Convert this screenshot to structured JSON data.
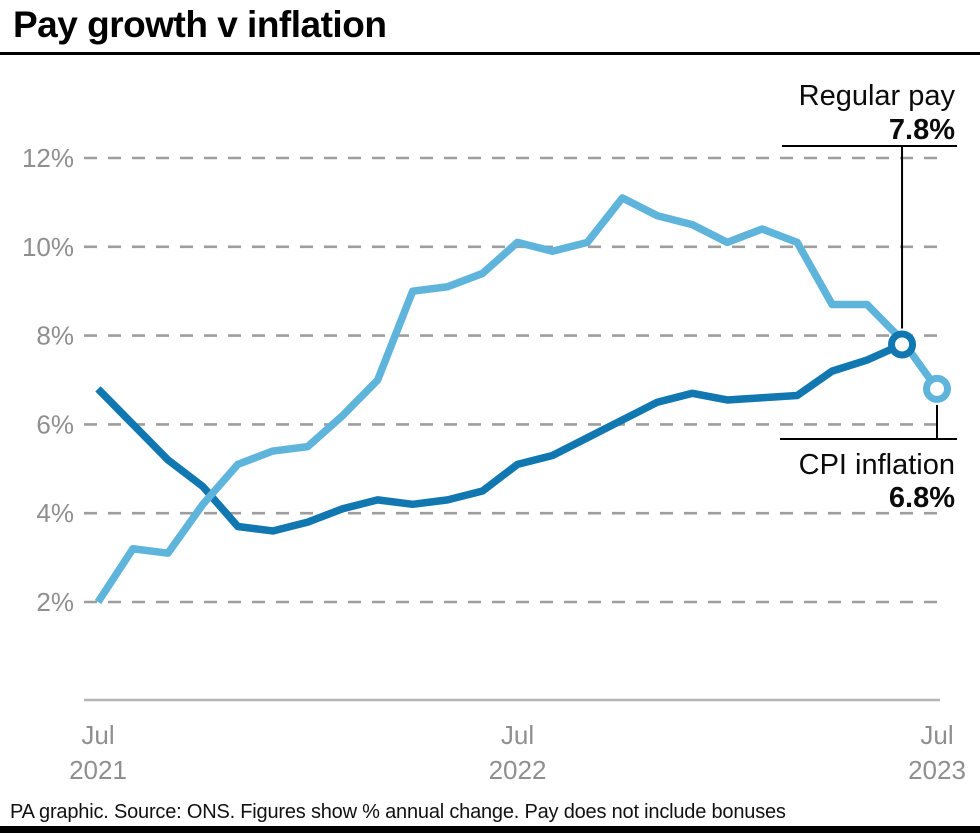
{
  "header": {
    "title": "Pay growth v inflation"
  },
  "chart_data": {
    "type": "line",
    "title": "Pay growth v inflation",
    "ylabel": "% annual change",
    "ylim": [
      2,
      12
    ],
    "grid": "dashed-horizontal",
    "legend_position": "end-of-line annotations",
    "colors": {
      "regular_pay": "#1177b0",
      "cpi_inflation": "#5fb4dc",
      "grid": "#9e9e9e",
      "axis": "#b5b5b5",
      "tick_text": "#8f8f8f"
    },
    "y_ticks": [
      12,
      10,
      8,
      6,
      4,
      2
    ],
    "y_tick_labels": [
      "12%",
      "10%",
      "8%",
      "6%",
      "4%",
      "2%"
    ],
    "x_tick_positions": [
      0,
      12,
      24
    ],
    "x_tick_labels": [
      [
        "Jul",
        "2021"
      ],
      [
        "Jul",
        "2022"
      ],
      [
        "Jul",
        "2023"
      ]
    ],
    "x_months": [
      "Jul 2021",
      "Aug 2021",
      "Sep 2021",
      "Oct 2021",
      "Nov 2021",
      "Dec 2021",
      "Jan 2022",
      "Feb 2022",
      "Mar 2022",
      "Apr 2022",
      "May 2022",
      "Jun 2022",
      "Jul 2022",
      "Aug 2022",
      "Sep 2022",
      "Oct 2022",
      "Nov 2022",
      "Dec 2022",
      "Jan 2023",
      "Feb 2023",
      "Mar 2023",
      "Apr 2023",
      "May 2023",
      "Jun 2023",
      "Jul 2023"
    ],
    "series": [
      {
        "name": "Regular pay",
        "color": "#1177b0",
        "start_month": 0,
        "values": [
          6.8,
          6.0,
          5.2,
          4.6,
          3.7,
          3.6,
          3.8,
          4.1,
          4.3,
          4.2,
          4.3,
          4.5,
          5.1,
          5.3,
          5.7,
          6.1,
          6.5,
          6.7,
          6.55,
          6.6,
          6.65,
          7.2,
          7.45,
          7.8
        ],
        "end_marker": true
      },
      {
        "name": "CPI inflation",
        "color": "#5fb4dc",
        "start_month": 0,
        "values": [
          2.0,
          3.2,
          3.1,
          4.2,
          5.1,
          5.4,
          5.5,
          6.2,
          7.0,
          9.0,
          9.1,
          9.4,
          10.1,
          9.9,
          10.1,
          11.1,
          10.7,
          10.5,
          10.1,
          10.4,
          10.1,
          8.7,
          8.7,
          7.9,
          6.8
        ],
        "end_marker": true
      }
    ],
    "annotations": [
      {
        "label": "Regular pay",
        "value": "7.8%"
      },
      {
        "label": "CPI inflation",
        "value": "6.8%"
      }
    ]
  },
  "footer": {
    "text": "PA graphic. Source: ONS. Figures show % annual change. Pay does not include bonuses"
  }
}
